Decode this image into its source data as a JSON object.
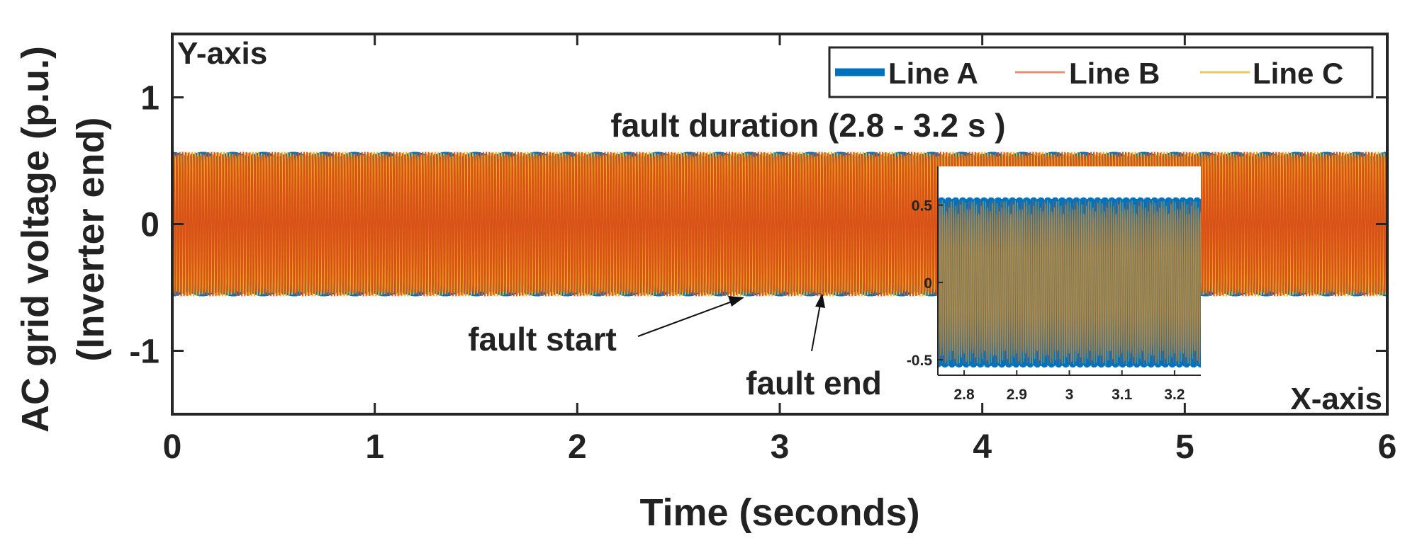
{
  "chart_data": {
    "type": "line",
    "xlabel": "Time (seconds)",
    "ylabel_lines": [
      "AC grid voltage (p.u.)",
      "(Inverter end)"
    ],
    "xlim": [
      0,
      6
    ],
    "ylim": [
      -1.5,
      1.5
    ],
    "x_ticks": [
      "0",
      "1",
      "2",
      "3",
      "4",
      "5",
      "6"
    ],
    "y_ticks": [
      "1",
      "0",
      "-1"
    ],
    "x_tick_values": [
      0,
      1,
      2,
      3,
      4,
      5,
      6
    ],
    "y_tick_values": [
      1,
      0,
      -1
    ],
    "y_axis_corner_label": "Y-axis",
    "x_axis_corner_label": "X-axis",
    "series": [
      {
        "name": "Line A",
        "color": "#0072BD",
        "amplitude": 0.57,
        "phase_deg": 0,
        "frequency_hz": 50
      },
      {
        "name": "Line B",
        "color": "#D95319",
        "amplitude": 0.57,
        "phase_deg": -120,
        "frequency_hz": 50
      },
      {
        "name": "Line C",
        "color": "#EDB120",
        "amplitude": 0.57,
        "phase_deg": 120,
        "frequency_hz": 50
      }
    ],
    "legend": {
      "placement": "top-right",
      "entries": [
        "Line A",
        "Line B",
        "Line C"
      ]
    },
    "annotations": {
      "fault_duration": "fault duration (2.8 - 3.2 s )",
      "fault_start": "fault start",
      "fault_end": "fault end",
      "fault_start_time": 2.8,
      "fault_end_time": 3.2
    },
    "inset": {
      "xlim": [
        2.75,
        3.25
      ],
      "ylim": [
        -0.6,
        0.75
      ],
      "x_ticks": [
        "2.8",
        "2.9",
        "3",
        "3.1",
        "3.2"
      ],
      "x_tick_values": [
        2.8,
        2.9,
        3.0,
        3.1,
        3.2
      ],
      "y_ticks": [
        "0.5",
        "0",
        "-0.5"
      ],
      "y_tick_values": [
        0.5,
        0,
        -0.5
      ],
      "band_amplitude": 0.55
    }
  }
}
